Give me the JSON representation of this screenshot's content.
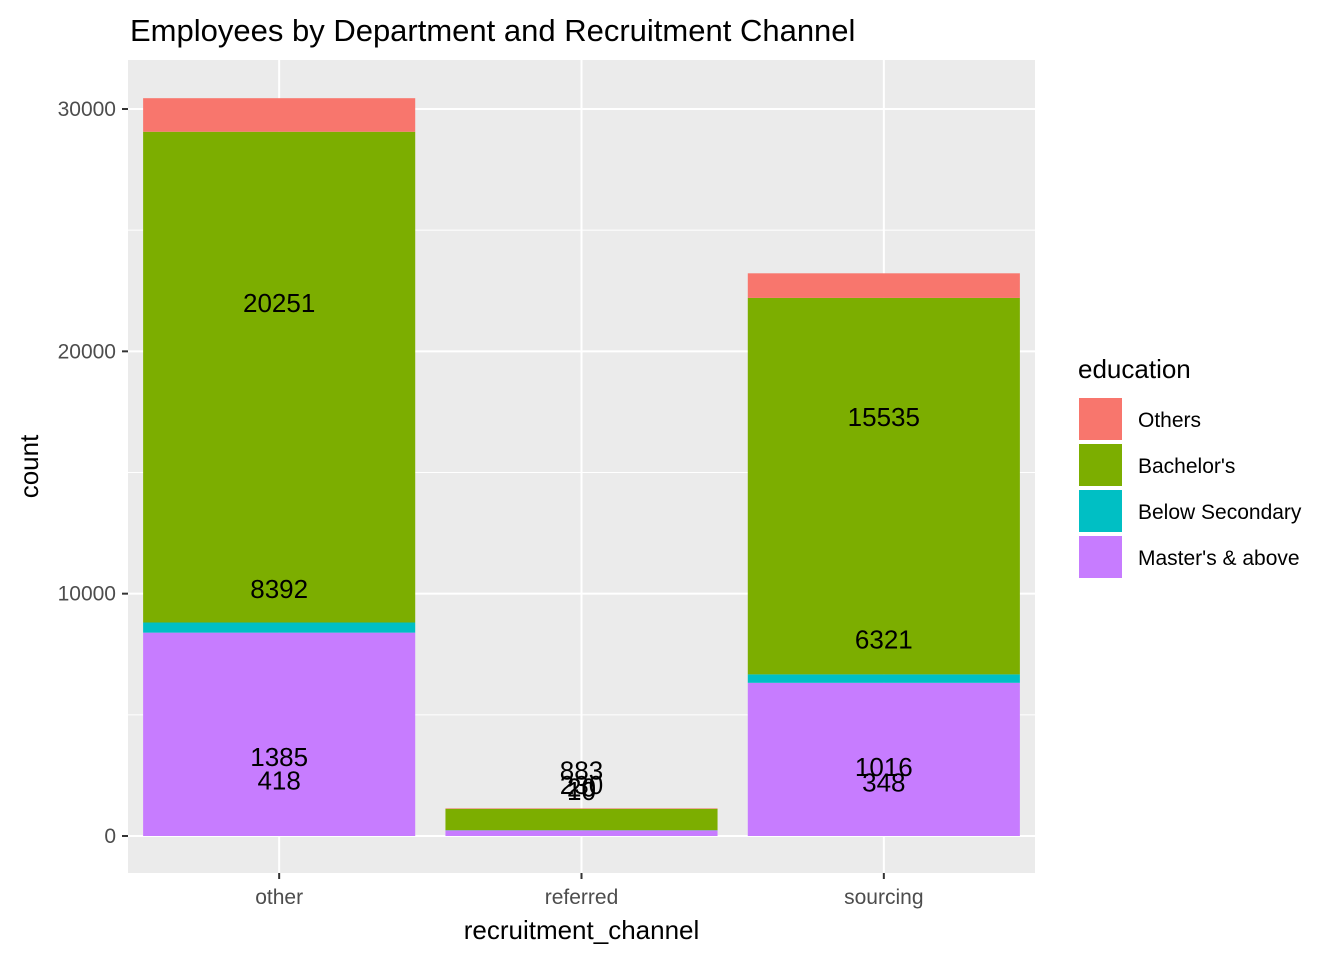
{
  "chart_data": {
    "type": "bar",
    "stacked": true,
    "title": "Employees by Department and Recruitment Channel",
    "xlabel": "recruitment_channel",
    "ylabel": "count",
    "categories": [
      "other",
      "referred",
      "sourcing"
    ],
    "ylim": [
      0,
      32000
    ],
    "yticks": [
      0,
      10000,
      20000,
      30000
    ],
    "grid": true,
    "legend": {
      "title": "education",
      "placement": "right"
    },
    "series": [
      {
        "name": "Master's & above",
        "color": "#C77CFF",
        "values": [
          8392,
          230,
          6321
        ]
      },
      {
        "name": "Below Secondary",
        "color": "#00BFC4",
        "values": [
          418,
          10,
          348
        ]
      },
      {
        "name": "Bachelor's",
        "color": "#7CAE00",
        "values": [
          20251,
          883,
          15535
        ]
      },
      {
        "name": "Others",
        "color": "#F8766D",
        "values": [
          1385,
          20,
          1016
        ]
      }
    ],
    "labels": [
      {
        "category": "other",
        "text": "20251",
        "y": 22000
      },
      {
        "category": "other",
        "text": "8392",
        "y": 10200
      },
      {
        "category": "other",
        "text": "1385",
        "y": 3250
      },
      {
        "category": "other",
        "text": "418",
        "y": 2300
      },
      {
        "category": "referred",
        "text": "883",
        "y": 2700
      },
      {
        "category": "referred",
        "text": "230",
        "y": 2100
      },
      {
        "category": "referred",
        "text": "20",
        "y": 2000
      },
      {
        "category": "referred",
        "text": "10",
        "y": 1850
      },
      {
        "category": "sourcing",
        "text": "15535",
        "y": 17300
      },
      {
        "category": "sourcing",
        "text": "6321",
        "y": 8100
      },
      {
        "category": "sourcing",
        "text": "1016",
        "y": 2850
      },
      {
        "category": "sourcing",
        "text": "348",
        "y": 2200
      }
    ]
  }
}
